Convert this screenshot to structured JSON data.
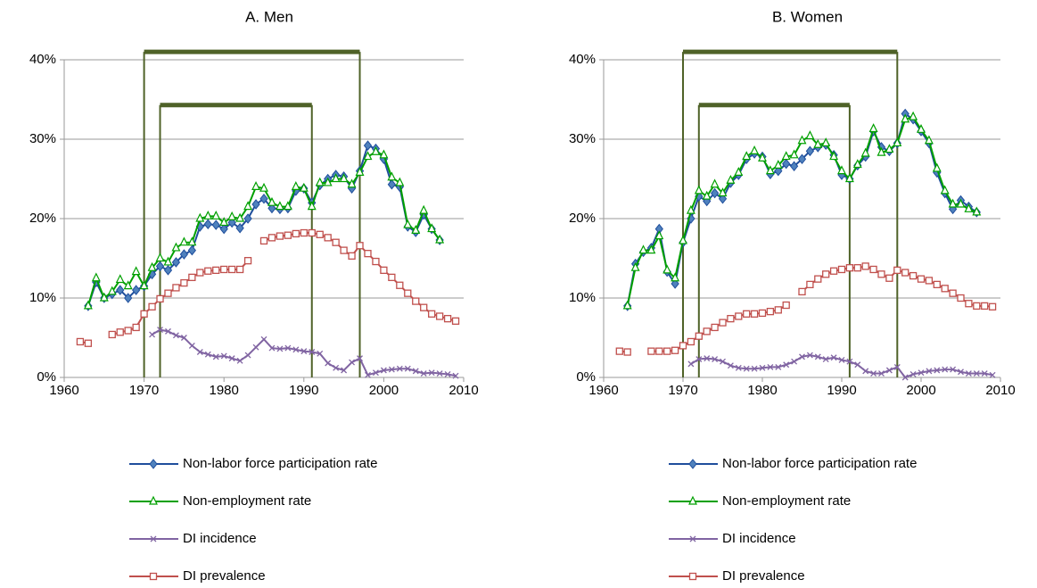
{
  "chart_data": [
    {
      "type": "line",
      "title": "A. Men",
      "x": [
        1962,
        1963,
        1964,
        1965,
        1966,
        1967,
        1968,
        1969,
        1970,
        1971,
        1972,
        1973,
        1974,
        1975,
        1976,
        1977,
        1978,
        1979,
        1980,
        1981,
        1982,
        1983,
        1984,
        1985,
        1986,
        1987,
        1988,
        1989,
        1990,
        1991,
        1992,
        1993,
        1994,
        1995,
        1996,
        1997,
        1998,
        1999,
        2000,
        2001,
        2002,
        2003,
        2004,
        2005,
        2006,
        2007,
        2008,
        2009
      ],
      "series": [
        {
          "name": "Non-labor force participation rate",
          "color": "#1f4e9c",
          "marker": "diamond",
          "values": [
            null,
            9,
            12,
            10,
            10.5,
            11,
            10,
            11,
            11.5,
            13,
            14,
            13.5,
            14.5,
            15.5,
            16,
            19,
            19.3,
            19.2,
            18.7,
            19.5,
            18.8,
            20,
            21.8,
            22.5,
            21.3,
            21.2,
            21.3,
            23.5,
            23.8,
            22,
            24.2,
            25,
            25.5,
            25.3,
            23.8,
            26,
            29.2,
            28.8,
            27.5,
            24.3,
            24,
            19,
            18.3,
            20.5,
            18.7,
            17.3,
            null,
            null
          ]
        },
        {
          "name": "Non-employment rate",
          "color": "#00a000",
          "marker": "triangle",
          "values": [
            null,
            9,
            12.5,
            10,
            10.8,
            12.3,
            11.5,
            13.3,
            11.5,
            13.8,
            15,
            14.5,
            16.3,
            17,
            17,
            20,
            20.3,
            20.3,
            19.5,
            20.2,
            20,
            21.5,
            24,
            23.8,
            22,
            21.5,
            21.5,
            24,
            23.8,
            21.5,
            24.5,
            24.5,
            25,
            25,
            24.3,
            25.8,
            27.8,
            28.4,
            28,
            25.2,
            24.5,
            19.2,
            18.5,
            21,
            18.7,
            17.3,
            null,
            null
          ]
        },
        {
          "name": "DI incidence",
          "color": "#8064a2",
          "marker": "cross",
          "values": [
            null,
            null,
            null,
            null,
            null,
            null,
            null,
            null,
            null,
            5.4,
            6,
            5.8,
            5.3,
            5,
            4,
            3.2,
            2.9,
            2.6,
            2.7,
            2.4,
            2.1,
            2.8,
            3.8,
            4.8,
            3.7,
            3.6,
            3.7,
            3.5,
            3.3,
            3.2,
            3,
            1.8,
            1.2,
            0.9,
            1.9,
            2.4,
            0.3,
            0.6,
            0.9,
            1,
            1.1,
            1.1,
            0.8,
            0.5,
            0.6,
            0.5,
            0.4,
            0.2
          ]
        },
        {
          "name": "DI prevalence",
          "color": "#c0504d",
          "marker": "square",
          "values": [
            4.5,
            4.3,
            null,
            null,
            5.4,
            5.7,
            5.9,
            6.3,
            8,
            8.9,
            9.9,
            10.6,
            11.3,
            11.9,
            12.6,
            13.2,
            13.4,
            13.5,
            13.6,
            13.6,
            13.6,
            14.7,
            null,
            17.2,
            17.6,
            17.8,
            17.9,
            18.1,
            18.2,
            18.2,
            18,
            17.6,
            17,
            16,
            15.3,
            16.6,
            15.6,
            14.6,
            13.5,
            12.6,
            11.6,
            10.6,
            9.6,
            8.8,
            8,
            7.7,
            7.4,
            7.1
          ]
        }
      ],
      "xlim": [
        1960,
        2010
      ],
      "xticks": [
        1960,
        1970,
        1980,
        1990,
        2000,
        2010
      ],
      "ylim": [
        0,
        40
      ],
      "yticks": [
        {
          "value": 0,
          "label": "0%"
        },
        {
          "value": 10,
          "label": "10%"
        },
        {
          "value": 20,
          "label": "20%"
        },
        {
          "value": 30,
          "label": "30%"
        },
        {
          "value": 40,
          "label": "40%"
        }
      ],
      "grid": true,
      "bracket_color": "#4f6228",
      "brackets": [
        {
          "start": 1970,
          "end": 1997,
          "level": 41
        },
        {
          "start": 1972,
          "end": 1991,
          "level": 34.3
        }
      ]
    },
    {
      "type": "line",
      "title": "B. Women",
      "x": [
        1962,
        1963,
        1964,
        1965,
        1966,
        1967,
        1968,
        1969,
        1970,
        1971,
        1972,
        1973,
        1974,
        1975,
        1976,
        1977,
        1978,
        1979,
        1980,
        1981,
        1982,
        1983,
        1984,
        1985,
        1986,
        1987,
        1988,
        1989,
        1990,
        1991,
        1992,
        1993,
        1994,
        1995,
        1996,
        1997,
        1998,
        1999,
        2000,
        2001,
        2002,
        2003,
        2004,
        2005,
        2006,
        2007,
        2008,
        2009
      ],
      "series": [
        {
          "name": "Non-labor force participation rate",
          "color": "#1f4e9c",
          "marker": "diamond",
          "values": [
            null,
            9,
            14.3,
            15.8,
            16.3,
            18.7,
            13.3,
            11.8,
            17,
            20,
            22.8,
            22.2,
            23.2,
            22.5,
            24.5,
            25.5,
            27.5,
            28.2,
            27.8,
            25.6,
            26,
            26.9,
            26.6,
            27.5,
            28.5,
            29,
            29.3,
            28,
            25.5,
            25,
            26.7,
            27.8,
            31,
            29,
            28.5,
            29.5,
            33.2,
            32.5,
            31,
            29.5,
            25.8,
            23.2,
            21.2,
            22.3,
            21.5,
            20.8,
            null,
            null
          ]
        },
        {
          "name": "Non-employment rate",
          "color": "#00a000",
          "marker": "triangle",
          "values": [
            null,
            9,
            13.8,
            16,
            16,
            17.8,
            13.5,
            12.5,
            17.2,
            21,
            23.5,
            22.8,
            24.3,
            23.2,
            24.8,
            25.8,
            27.8,
            28.5,
            27.6,
            26,
            26.7,
            27.8,
            28,
            29.8,
            30.4,
            29.3,
            29.5,
            27.8,
            26,
            25,
            26.8,
            28.2,
            31.3,
            28.3,
            28.7,
            29.5,
            32.5,
            32.8,
            31.2,
            29.8,
            26.3,
            23.5,
            21.8,
            21.8,
            21.2,
            20.8,
            null,
            null
          ]
        },
        {
          "name": "DI incidence",
          "color": "#8064a2",
          "marker": "cross",
          "values": [
            null,
            null,
            null,
            null,
            null,
            null,
            null,
            null,
            null,
            1.7,
            2.3,
            2.4,
            2.3,
            2,
            1.5,
            1.2,
            1.1,
            1.1,
            1.2,
            1.3,
            1.3,
            1.6,
            2,
            2.6,
            2.8,
            2.6,
            2.3,
            2.5,
            2.2,
            2,
            1.6,
            0.8,
            0.5,
            0.5,
            0.9,
            1.3,
            0,
            0.4,
            0.6,
            0.8,
            0.9,
            1,
            1,
            0.7,
            0.5,
            0.5,
            0.5,
            0.3
          ]
        },
        {
          "name": "DI prevalence",
          "color": "#c0504d",
          "marker": "square",
          "values": [
            3.3,
            3.2,
            null,
            null,
            3.3,
            3.3,
            3.3,
            3.4,
            4,
            4.5,
            5.2,
            5.8,
            6.3,
            6.9,
            7.4,
            7.7,
            8,
            8,
            8.1,
            8.3,
            8.5,
            9.1,
            null,
            10.8,
            11.7,
            12.4,
            13,
            13.4,
            13.6,
            13.8,
            13.8,
            14,
            13.6,
            13,
            12.5,
            13.5,
            13.2,
            12.8,
            12.4,
            12.2,
            11.7,
            11.2,
            10.6,
            10,
            9.3,
            9,
            9,
            8.9
          ]
        }
      ],
      "xlim": [
        1960,
        2010
      ],
      "xticks": [
        1960,
        1970,
        1980,
        1990,
        2000,
        2010
      ],
      "ylim": [
        0,
        40
      ],
      "yticks": [
        {
          "value": 0,
          "label": "0%"
        },
        {
          "value": 10,
          "label": "10%"
        },
        {
          "value": 20,
          "label": "20%"
        },
        {
          "value": 30,
          "label": "30%"
        },
        {
          "value": 40,
          "label": "40%"
        }
      ],
      "grid": true,
      "bracket_color": "#4f6228",
      "brackets": [
        {
          "start": 1970,
          "end": 1997,
          "level": 41
        },
        {
          "start": 1972,
          "end": 1991,
          "level": 34.3
        }
      ]
    }
  ]
}
